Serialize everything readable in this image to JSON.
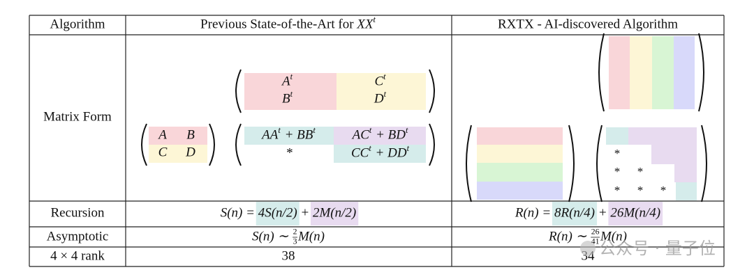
{
  "table": {
    "header": {
      "algorithm": "Algorithm",
      "previous": [
        "Previous State-of-the-Art for ",
        "XX",
        {
          "sup": "t"
        }
      ],
      "rxtx": "RXTX - AI-discovered Algorithm"
    },
    "row_labels": [
      "Matrix Form",
      "Recursion",
      "Asymptotic",
      "4 × 4 rank"
    ],
    "matrix_form": {
      "input": [
        "A",
        "B",
        "C",
        "D"
      ],
      "transpose": [
        [
          "A",
          {
            "sup": "t"
          }
        ],
        [
          "C",
          {
            "sup": "t"
          }
        ],
        [
          "B",
          {
            "sup": "t"
          }
        ],
        [
          "D",
          {
            "sup": "t"
          }
        ]
      ],
      "product": [
        [
          "AA",
          {
            "sup": "t"
          },
          " + BB",
          {
            "sup": "t"
          }
        ],
        [
          "AC",
          {
            "sup": "t"
          },
          " + BD",
          {
            "sup": "t"
          }
        ],
        [
          "*"
        ],
        [
          "CC",
          {
            "sup": "t"
          },
          " + DD",
          {
            "sup": "t"
          }
        ]
      ],
      "rxtx_stars": [
        "*",
        "*",
        "*",
        "*",
        "*",
        "*"
      ]
    },
    "recursion": {
      "previous": [
        "S(n) = ",
        "4S(n/2)",
        " + ",
        "2M(n/2)"
      ],
      "rxtx": [
        "R(n) = ",
        "8R(n/4)",
        " + ",
        "26M(n/4)"
      ]
    },
    "asymptotic": {
      "previous": {
        "lhs": "S(n) ∼ ",
        "numerator": "2",
        "denominator": "3",
        "rhs": "M(n)"
      },
      "rxtx": {
        "lhs": "R(n) ∼ ",
        "numerator": "26",
        "denominator": "41",
        "rhs": "M(n)"
      }
    },
    "rank": {
      "previous": 38,
      "rxtx": 34
    }
  },
  "watermark": "公众号 · 量子位"
}
